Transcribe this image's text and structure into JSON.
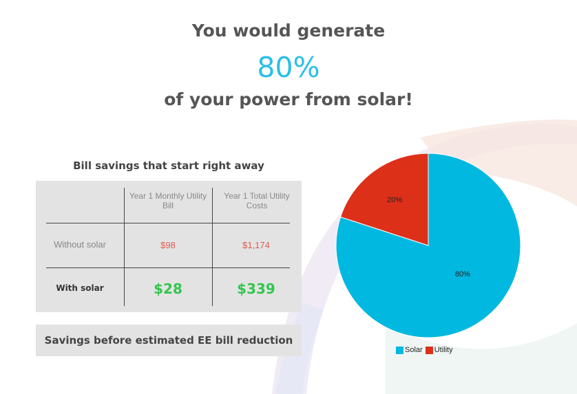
{
  "headline": {
    "line1": "You would generate",
    "percent": "80%",
    "line3": "of your power from solar!"
  },
  "table": {
    "title": "Bill savings that start right away",
    "columns": [
      "Year 1 Monthly Utility Bill",
      "Year 1 Total Utility Costs"
    ],
    "rows": [
      {
        "label": "Without solar",
        "monthly": "$98",
        "total": "$1,174"
      },
      {
        "label": "With solar",
        "monthly": "$28",
        "total": "$339"
      }
    ]
  },
  "savings_note": "Savings before estimated EE bill reduction",
  "colors": {
    "solar": "#00b8e0",
    "utility": "#dd3018",
    "accent": "#29bfe6",
    "savings_green": "#34c54f",
    "cost_red": "#e05a4f"
  },
  "chart_data": {
    "type": "pie",
    "title": "",
    "slices": [
      {
        "name": "Solar",
        "value": 80,
        "label": "80%"
      },
      {
        "name": "Utility",
        "value": 20,
        "label": "20%"
      }
    ],
    "legend": "bottom"
  }
}
